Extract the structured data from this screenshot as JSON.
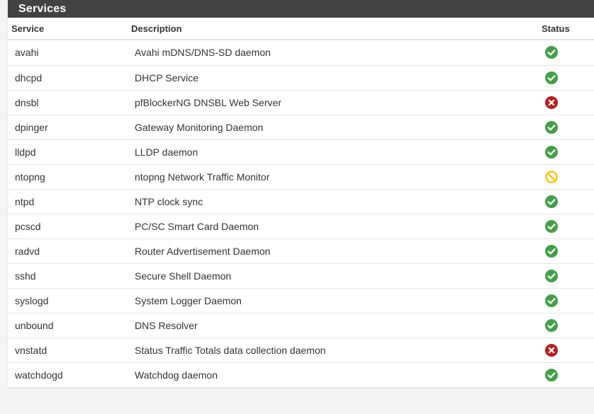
{
  "panel": {
    "title": "Services"
  },
  "table": {
    "headers": {
      "service": "Service",
      "description": "Description",
      "status": "Status"
    },
    "rows": [
      {
        "service": "avahi",
        "description": "Avahi mDNS/DNS-SD daemon",
        "status": "running"
      },
      {
        "service": "dhcpd",
        "description": "DHCP Service",
        "status": "running"
      },
      {
        "service": "dnsbl",
        "description": "pfBlockerNG DNSBL Web Server",
        "status": "stopped"
      },
      {
        "service": "dpinger",
        "description": "Gateway Monitoring Daemon",
        "status": "running"
      },
      {
        "service": "lldpd",
        "description": "LLDP daemon",
        "status": "running"
      },
      {
        "service": "ntopng",
        "description": "ntopng Network Traffic Monitor",
        "status": "disabled"
      },
      {
        "service": "ntpd",
        "description": "NTP clock sync",
        "status": "running"
      },
      {
        "service": "pcscd",
        "description": "PC/SC Smart Card Daemon",
        "status": "running"
      },
      {
        "service": "radvd",
        "description": "Router Advertisement Daemon",
        "status": "running"
      },
      {
        "service": "sshd",
        "description": "Secure Shell Daemon",
        "status": "running"
      },
      {
        "service": "syslogd",
        "description": "System Logger Daemon",
        "status": "running"
      },
      {
        "service": "unbound",
        "description": "DNS Resolver",
        "status": "running"
      },
      {
        "service": "vnstatd",
        "description": "Status Traffic Totals data collection daemon",
        "status": "stopped"
      },
      {
        "service": "watchdogd",
        "description": "Watchdog daemon",
        "status": "running"
      }
    ]
  },
  "status_icons": {
    "running": {
      "icon": "check-circle-icon",
      "color": "#43a047"
    },
    "stopped": {
      "icon": "times-circle-icon",
      "color": "#b71c1c"
    },
    "disabled": {
      "icon": "ban-icon",
      "color": "#ffc107"
    }
  }
}
